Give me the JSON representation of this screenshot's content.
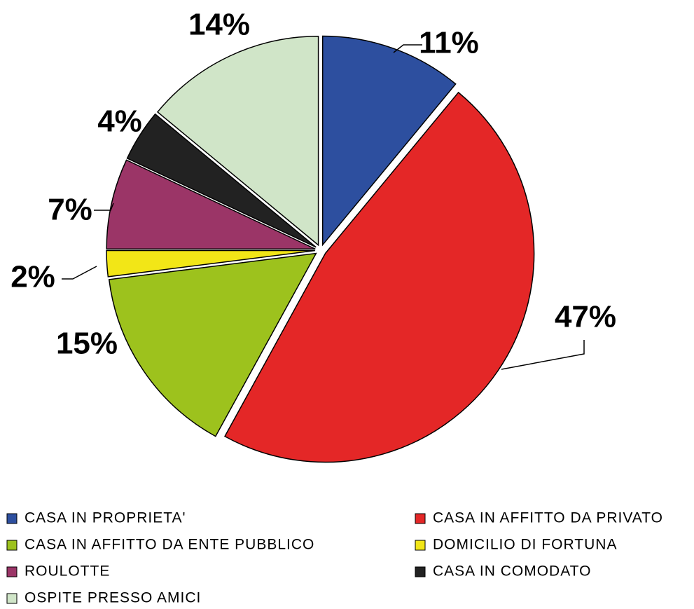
{
  "chart_data": {
    "type": "pie",
    "categories": [
      "CASA IN PROPRIETA'",
      "CASA IN AFFITTO DA PRIVATO",
      "CASA IN AFFITTO DA ENTE PUBBLICO",
      "DOMICILIO DI FORTUNA",
      "ROULOTTE",
      "CASA IN COMODATO",
      "OSPITE PRESSO AMICI"
    ],
    "values": [
      11,
      47,
      15,
      2,
      7,
      4,
      14
    ],
    "value_labels": [
      "11%",
      "47%",
      "15%",
      "2%",
      "7%",
      "4%",
      "14%"
    ],
    "colors": [
      "#2d4f9f",
      "#e42727",
      "#9dc21d",
      "#f2e617",
      "#9b3567",
      "#222222",
      "#d0e5c8"
    ],
    "legend": "bottom"
  }
}
